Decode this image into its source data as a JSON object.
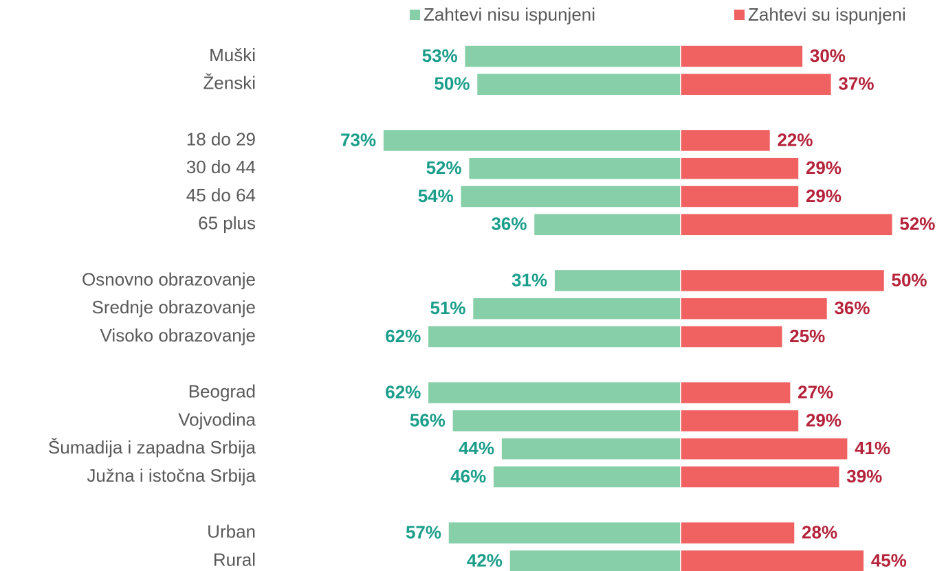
{
  "chart_data": {
    "type": "diverging_bar",
    "categories": [
      "Muški",
      "Ženski",
      null,
      "18 do 29",
      "30 do 44",
      "45 do 64",
      "65 plus",
      null,
      "Osnovno obrazovanje",
      "Srednje obrazovanje",
      "Visoko obrazovanje",
      null,
      "Beograd",
      "Vojvodina",
      "Šumadija i zapadna Srbija",
      "Južna i istočna Srbija",
      null,
      "Urban",
      "Rural"
    ],
    "series": [
      {
        "name": "Zahtevi nisu ispunjeni",
        "color": "#86cfa8",
        "label_color": "#1a9e8a",
        "values": [
          53,
          50,
          null,
          73,
          52,
          54,
          36,
          null,
          31,
          51,
          62,
          null,
          62,
          56,
          44,
          46,
          null,
          57,
          42
        ],
        "value_labels": [
          "53%",
          "50%",
          null,
          "73%",
          "52%",
          "54%",
          "36%",
          null,
          "31%",
          "51%",
          "62%",
          null,
          "62%",
          "56%",
          "44%",
          "46%",
          null,
          "57%",
          "42%"
        ]
      },
      {
        "name": "Zahtevi su ispunjeni",
        "color": "#f06262",
        "label_color": "#b5223a",
        "values": [
          30,
          37,
          null,
          22,
          29,
          29,
          52,
          null,
          50,
          36,
          25,
          null,
          27,
          29,
          41,
          39,
          null,
          28,
          45
        ],
        "value_labels": [
          "30%",
          "37%",
          null,
          "22%",
          "29%",
          "29%",
          "52%",
          null,
          "50%",
          "36%",
          "25%",
          null,
          "27%",
          "29%",
          "41%",
          "39%",
          null,
          "28%",
          "45%"
        ]
      }
    ]
  }
}
